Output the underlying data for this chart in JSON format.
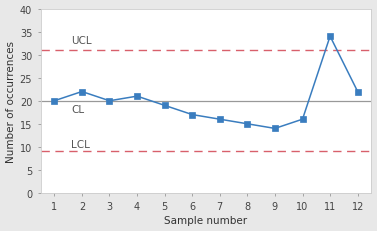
{
  "x": [
    1,
    2,
    3,
    4,
    5,
    6,
    7,
    8,
    9,
    10,
    11,
    12
  ],
  "y": [
    20,
    22,
    20,
    21,
    19,
    17,
    16,
    15,
    14,
    16,
    34,
    22
  ],
  "ucl": 31,
  "cl": 20,
  "lcl": 9,
  "ucl_label": "UCL",
  "cl_label": "CL",
  "lcl_label": "LCL",
  "line_color": "#3a7dbf",
  "marker_color": "#3a7dbf",
  "ucl_color": "#d8606b",
  "lcl_color": "#d8606b",
  "cl_color": "#999999",
  "xlabel": "Sample number",
  "ylabel": "Number of occurrences",
  "xlim": [
    0.5,
    12.5
  ],
  "ylim": [
    0,
    40
  ],
  "yticks": [
    0,
    5,
    10,
    15,
    20,
    25,
    30,
    35,
    40
  ],
  "xticks": [
    1,
    2,
    3,
    4,
    5,
    6,
    7,
    8,
    9,
    10,
    11,
    12
  ],
  "bg_color": "#e8e8e8",
  "plot_bg_color": "#ffffff",
  "label_color": "#555555",
  "tick_label_color": "#444444"
}
